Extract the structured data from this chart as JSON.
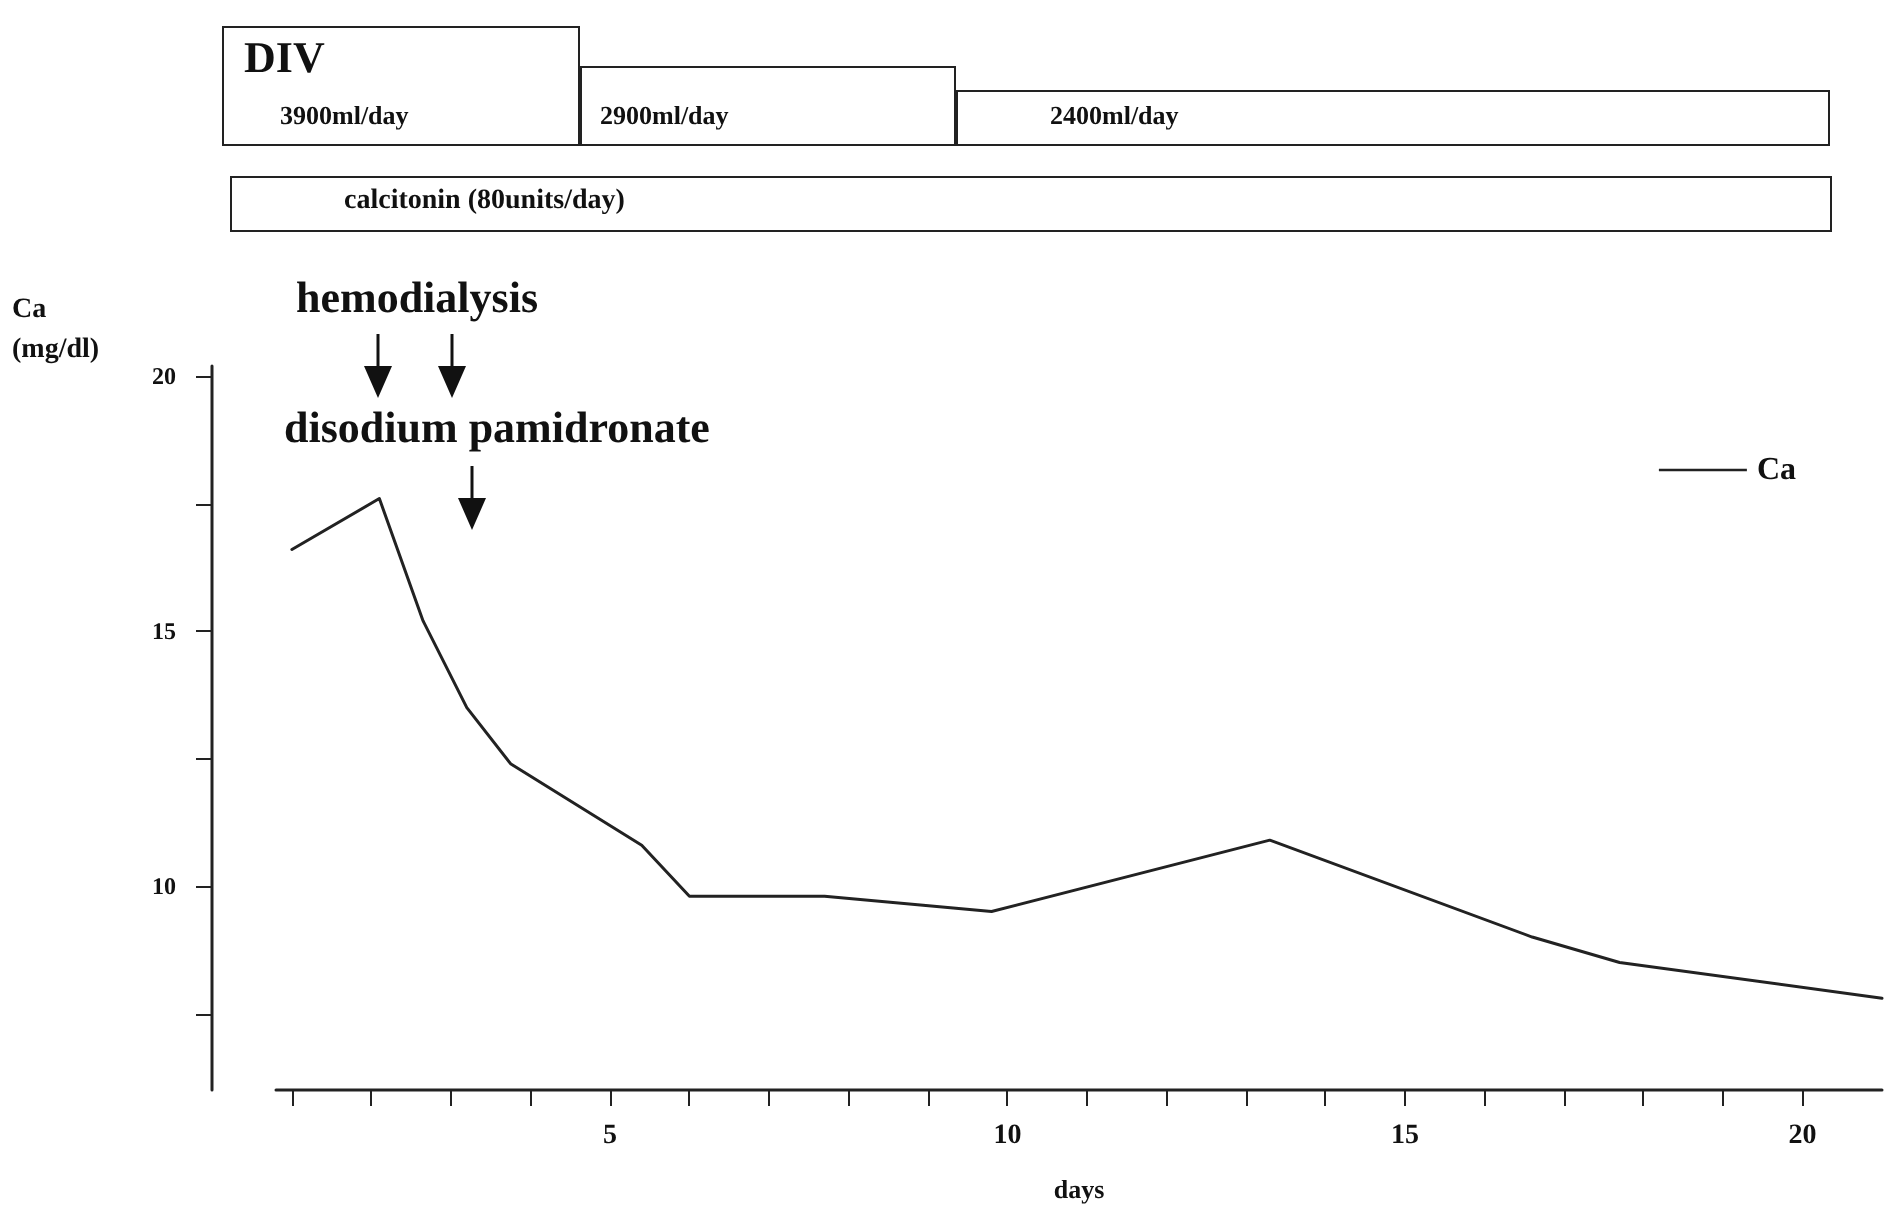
{
  "chart_data": {
    "type": "line",
    "xlabel": "days",
    "ylabel": "Ca\n(mg/dl)",
    "annotations": [
      "DIV",
      "3900ml/day",
      "2900ml/day",
      "2400ml/day",
      "calcitonin (80units/day)",
      "hemodialysis",
      "disodium pamidronate"
    ],
    "x": [
      1.0,
      2.1,
      2.65,
      3.2,
      3.75,
      5.4,
      6.0,
      7.7,
      9.8,
      13.3,
      16.6,
      17.7,
      21.0
    ],
    "series": [
      {
        "name": "Ca",
        "color": "#222222",
        "values": [
          16.6,
          17.6,
          15.2,
          13.5,
          12.4,
          10.8,
          9.8,
          9.8,
          9.5,
          10.9,
          9.0,
          8.5,
          7.8
        ]
      }
    ],
    "xlim": [
      0.8,
      21
    ],
    "xticks": [
      {
        "value": 1,
        "label": null
      },
      {
        "value": 2,
        "label": null
      },
      {
        "value": 3,
        "label": null
      },
      {
        "value": 4,
        "label": null
      },
      5,
      {
        "value": 6,
        "label": null
      },
      {
        "value": 7,
        "label": null
      },
      {
        "value": 8,
        "label": null
      },
      {
        "value": 9,
        "label": null
      },
      10,
      {
        "value": 11,
        "label": null
      },
      {
        "value": 12,
        "label": null
      },
      {
        "value": 13,
        "label": null
      },
      {
        "value": 14,
        "label": null
      },
      15,
      {
        "value": 16,
        "label": null
      },
      {
        "value": 17,
        "label": null
      },
      {
        "value": 18,
        "label": null
      },
      {
        "value": 19,
        "label": null
      },
      20
    ],
    "ylim": [
      6.0,
      20.2
    ],
    "yticks": [
      {
        "value": 7.5,
        "label": null
      },
      10,
      {
        "value": 12.5,
        "label": null
      },
      15,
      {
        "value": 17.5,
        "label": null
      },
      20
    ],
    "grid": false,
    "legend": "top right",
    "marker": "none",
    "line_style": "solid"
  }
}
